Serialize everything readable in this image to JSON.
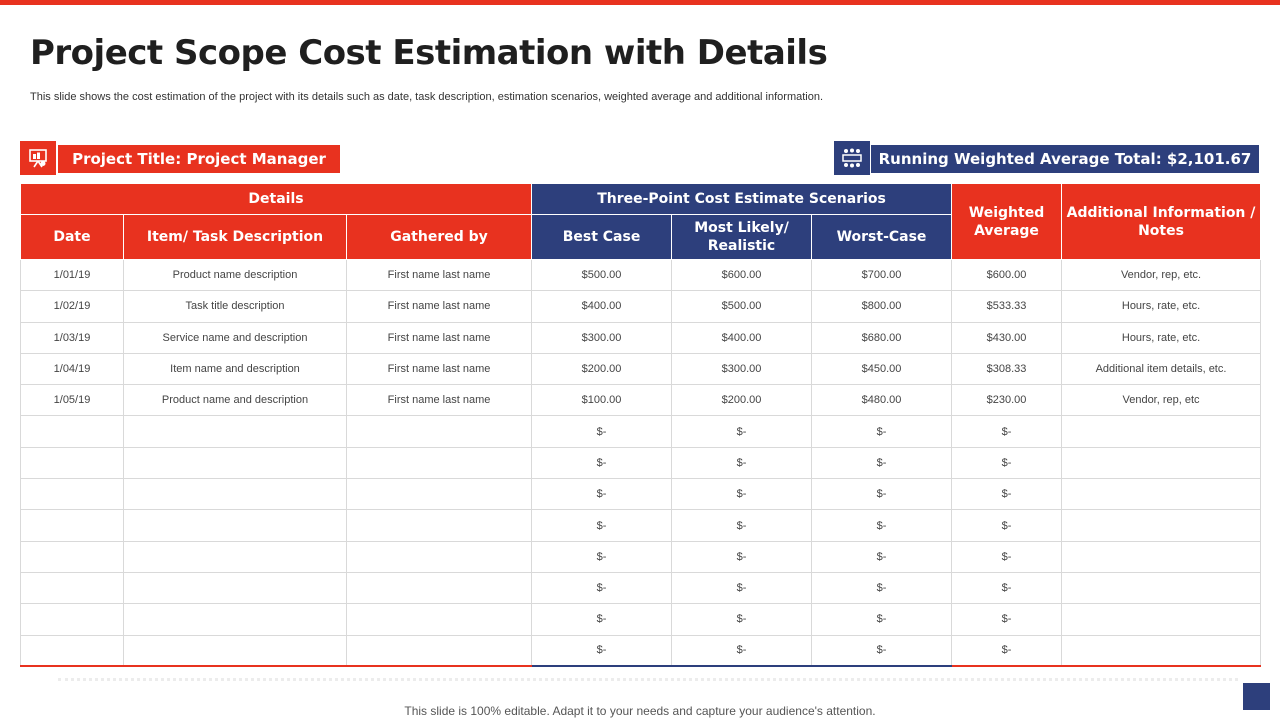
{
  "slide": {
    "title": "Project Scope Cost Estimation with Details",
    "subtitle": "This slide shows the cost estimation of the project with its details such as date, task description, estimation scenarios, weighted average and additional information.",
    "footer": "This slide is 100% editable. Adapt it to your needs and capture your audience's attention."
  },
  "banners": {
    "project_title": "Project Title: Project Manager",
    "running_total": "Running Weighted Average Total: $2,101.67"
  },
  "icons": {
    "left": "presentation-board-icon",
    "right": "team-meeting-icon"
  },
  "colors": {
    "accent_red": "#e8321f",
    "navy": "#2d3f7c"
  },
  "table": {
    "groups": {
      "details": "Details",
      "scenarios": "Three-Point Cost Estimate Scenarios",
      "weighted": "Weighted Average",
      "notes": "Additional Information / Notes"
    },
    "columns": {
      "date": "Date",
      "item": "Item/ Task Description",
      "gathered": "Gathered by",
      "best": "Best Case",
      "likely": "Most Likely/ Realistic",
      "worst": "Worst-Case"
    },
    "rows": [
      [
        "1/01/19",
        "Product name description",
        "First name last name",
        "$500.00",
        "$600.00",
        "$700.00",
        "$600.00",
        "Vendor, rep, etc."
      ],
      [
        "1/02/19",
        "Task title description",
        "First name last name",
        "$400.00",
        "$500.00",
        "$800.00",
        "$533.33",
        "Hours, rate, etc."
      ],
      [
        "1/03/19",
        "Service name and description",
        "First name last name",
        "$300.00",
        "$400.00",
        "$680.00",
        "$430.00",
        "Hours, rate, etc."
      ],
      [
        "1/04/19",
        "Item  name and description",
        "First name last name",
        "$200.00",
        "$300.00",
        "$450.00",
        "$308.33",
        "Additional item details, etc."
      ],
      [
        "1/05/19",
        "Product name and description",
        "First name last name",
        "$100.00",
        "$200.00",
        "$480.00",
        "$230.00",
        "Vendor, rep, etc"
      ],
      [
        "",
        "",
        "",
        "$-",
        "$-",
        "$-",
        "$-",
        ""
      ],
      [
        "",
        "",
        "",
        "$-",
        "$-",
        "$-",
        "$-",
        ""
      ],
      [
        "",
        "",
        "",
        "$-",
        "$-",
        "$-",
        "$-",
        ""
      ],
      [
        "",
        "",
        "",
        "$-",
        "$-",
        "$-",
        "$-",
        ""
      ],
      [
        "",
        "",
        "",
        "$-",
        "$-",
        "$-",
        "$-",
        ""
      ],
      [
        "",
        "",
        "",
        "$-",
        "$-",
        "$-",
        "$-",
        ""
      ],
      [
        "",
        "",
        "",
        "$-",
        "$-",
        "$-",
        "$-",
        ""
      ],
      [
        "",
        "",
        "",
        "$-",
        "$-",
        "$-",
        "$-",
        ""
      ]
    ]
  }
}
